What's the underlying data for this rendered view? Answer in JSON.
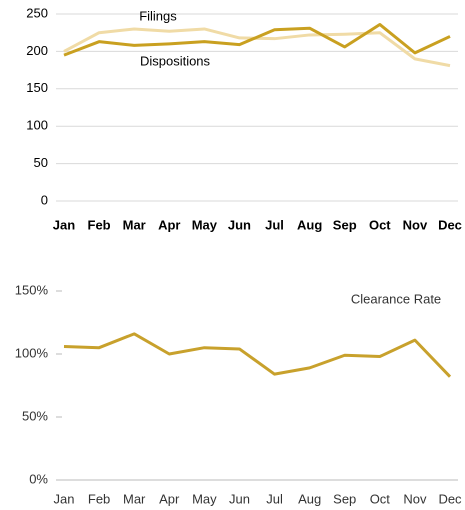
{
  "chart_data": [
    {
      "type": "line",
      "categories": [
        "Jan",
        "Feb",
        "Mar",
        "Apr",
        "May",
        "Jun",
        "Jul",
        "Aug",
        "Sep",
        "Oct",
        "Nov",
        "Dec"
      ],
      "series": [
        {
          "name": "Filings",
          "color": "#f0dba6",
          "values": [
            200,
            225,
            230,
            227,
            230,
            218,
            217,
            222,
            223,
            225,
            190,
            181
          ]
        },
        {
          "name": "Dispositions",
          "color": "#c9a020",
          "values": [
            195,
            213,
            208,
            210,
            213,
            209,
            229,
            231,
            206,
            236,
            198,
            220
          ]
        }
      ],
      "ylim": [
        0,
        250
      ],
      "yticks": [
        0,
        50,
        100,
        150,
        200,
        250
      ],
      "grid": true
    },
    {
      "type": "line",
      "categories": [
        "Jan",
        "Feb",
        "Mar",
        "Apr",
        "May",
        "Jun",
        "Jul",
        "Aug",
        "Sep",
        "Oct",
        "Nov",
        "Dec"
      ],
      "series": [
        {
          "name": "Clearance Rate",
          "color": "#c8a12c",
          "values": [
            106,
            105,
            116,
            100,
            105,
            104,
            84,
            89,
            99,
            98,
            111,
            82
          ]
        }
      ],
      "ylim": [
        0,
        150
      ],
      "yticks": [
        {
          "value": 0,
          "label": "0%"
        },
        {
          "value": 50,
          "label": "50%"
        },
        {
          "value": 100,
          "label": "100%"
        },
        {
          "value": 150,
          "label": "150%"
        }
      ],
      "grid": false
    }
  ]
}
